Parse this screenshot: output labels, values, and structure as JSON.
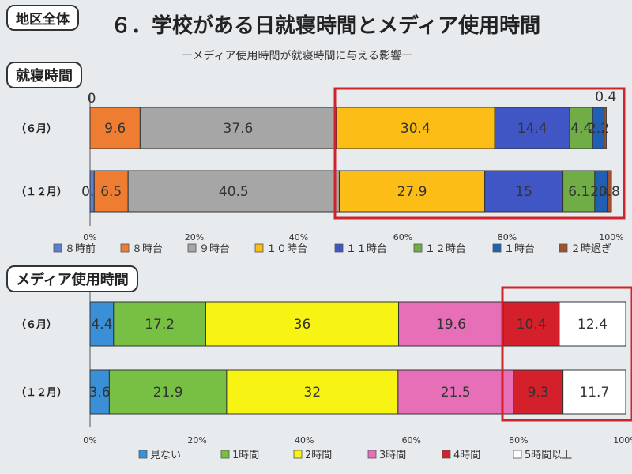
{
  "header": {
    "area_tag": "地区全体",
    "title": "６．学校がある日就寝時間とメディア使用時間",
    "subtitle": "ーメディア使用時間が就寝時間に与える影響ー"
  },
  "chart_data": [
    {
      "type": "bar",
      "orientation": "horizontal",
      "stacked": true,
      "title": "就寝時間",
      "categories": [
        "（６月）",
        "（１２月）"
      ],
      "xlim": [
        0,
        100
      ],
      "x_ticks": [
        "0%",
        "20%",
        "40%",
        "60%",
        "80%",
        "100%"
      ],
      "legend_position": "bottom",
      "series": [
        {
          "name": "８時前",
          "color": "#5b7fd1",
          "values": [
            0,
            0.8
          ],
          "labels": [
            "0",
            "0.8"
          ]
        },
        {
          "name": "８時台",
          "color": "#ee7d31",
          "values": [
            9.6,
            6.5
          ],
          "labels": [
            "9.6",
            "6.5"
          ]
        },
        {
          "name": "９時台",
          "color": "#a6a6a6",
          "values": [
            37.6,
            40.5
          ],
          "labels": [
            "37.6",
            "40.5"
          ]
        },
        {
          "name": "１０時台",
          "color": "#fbbd16",
          "values": [
            30.4,
            27.9
          ],
          "labels": [
            "30.4",
            "27.9"
          ]
        },
        {
          "name": "１１時台",
          "color": "#3f56c4",
          "values": [
            14.4,
            15
          ],
          "labels": [
            "14.4",
            "15"
          ]
        },
        {
          "name": "１２時台",
          "color": "#70ad47",
          "values": [
            4.4,
            6.1
          ],
          "labels": [
            "4.4",
            "6.1"
          ]
        },
        {
          "name": "１時台",
          "color": "#1f5fb4",
          "values": [
            2.2,
            2.4
          ],
          "labels": [
            "2.2",
            "2.4"
          ]
        },
        {
          "name": "２時過ぎ",
          "color": "#a0522d",
          "values": [
            0.4,
            0.8
          ],
          "labels": [
            "0.4",
            "0.8"
          ]
        }
      ]
    },
    {
      "type": "bar",
      "orientation": "horizontal",
      "stacked": true,
      "title": "メディア使用時間",
      "categories": [
        "（６月）",
        "（１２月）"
      ],
      "xlim": [
        0,
        100
      ],
      "x_ticks": [
        "0%",
        "20%",
        "40%",
        "60%",
        "80%",
        "100%"
      ],
      "legend_position": "bottom",
      "series": [
        {
          "name": "見ない",
          "color": "#3b8fd6",
          "values": [
            4.4,
            3.6
          ],
          "labels": [
            "4.4",
            "3.6"
          ]
        },
        {
          "name": "1時間",
          "color": "#78c043",
          "values": [
            17.2,
            21.9
          ],
          "labels": [
            "17.2",
            "21.9"
          ]
        },
        {
          "name": "2時間",
          "color": "#f7f313",
          "values": [
            36,
            32
          ],
          "labels": [
            "36",
            "32"
          ]
        },
        {
          "name": "3時間",
          "color": "#e66fb8",
          "values": [
            19.6,
            21.5
          ],
          "labels": [
            "19.6",
            "21.5"
          ]
        },
        {
          "name": "4時間",
          "color": "#d4202a",
          "values": [
            10.4,
            9.3
          ],
          "labels": [
            "10.4",
            "9.3"
          ]
        },
        {
          "name": "5時間以上",
          "color": "#ffffff",
          "values": [
            12.4,
            11.7
          ],
          "labels": [
            "12.4",
            "11.7"
          ]
        }
      ]
    }
  ],
  "highlight_color": "#d0242c"
}
